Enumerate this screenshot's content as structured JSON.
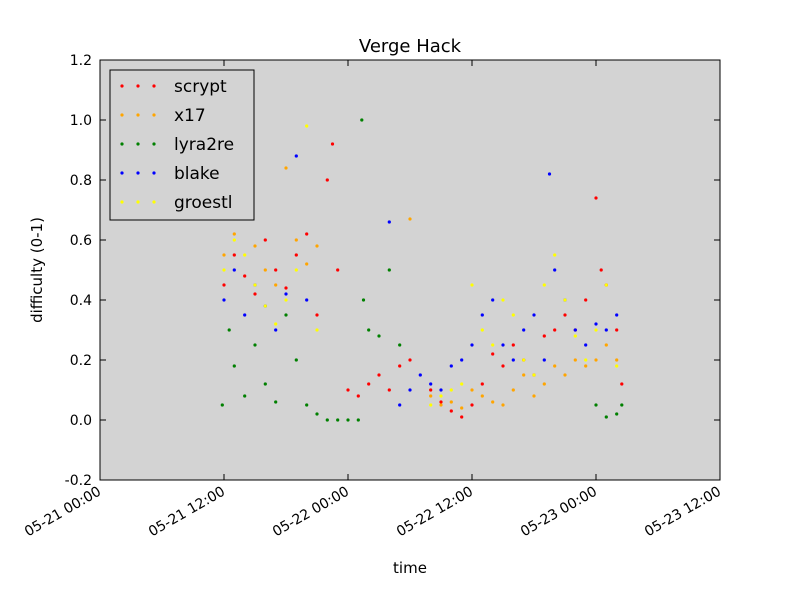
{
  "chart_data": {
    "type": "scatter",
    "title": "Verge Hack",
    "xlabel": "time",
    "ylabel": "difficulty (0-1)",
    "x_ticks": [
      "05-21 00:00",
      "05-21 12:00",
      "05-22 00:00",
      "05-22 12:00",
      "05-23 00:00",
      "05-23 12:00"
    ],
    "xlim": [
      "05-21 00:00",
      "05-23 12:00"
    ],
    "ylim": [
      -0.2,
      1.2
    ],
    "y_ticks": [
      -0.2,
      0.0,
      0.2,
      0.4,
      0.6,
      0.8,
      1.0,
      1.2
    ],
    "grid": false,
    "background": "#d3d3d3",
    "legend_position": "top-left",
    "series": [
      {
        "name": "scrypt",
        "color": "#ff0000",
        "points": [
          [
            "05-21 12:00",
            0.45
          ],
          [
            "05-21 13:00",
            0.55
          ],
          [
            "05-21 14:00",
            0.48
          ],
          [
            "05-21 15:00",
            0.42
          ],
          [
            "05-21 16:00",
            0.6
          ],
          [
            "05-21 17:00",
            0.5
          ],
          [
            "05-21 18:00",
            0.44
          ],
          [
            "05-21 19:00",
            0.55
          ],
          [
            "05-21 20:00",
            0.62
          ],
          [
            "05-21 21:00",
            0.35
          ],
          [
            "05-21 22:00",
            0.8
          ],
          [
            "05-21 22:30",
            0.92
          ],
          [
            "05-21 23:00",
            0.5
          ],
          [
            "05-22 00:00",
            0.1
          ],
          [
            "05-22 01:00",
            0.08
          ],
          [
            "05-22 02:00",
            0.12
          ],
          [
            "05-22 03:00",
            0.15
          ],
          [
            "05-22 04:00",
            0.1
          ],
          [
            "05-22 05:00",
            0.18
          ],
          [
            "05-22 06:00",
            0.2
          ],
          [
            "05-22 08:00",
            0.1
          ],
          [
            "05-22 09:00",
            0.06
          ],
          [
            "05-22 10:00",
            0.03
          ],
          [
            "05-22 11:00",
            0.01
          ],
          [
            "05-22 12:00",
            0.05
          ],
          [
            "05-22 13:00",
            0.12
          ],
          [
            "05-22 14:00",
            0.22
          ],
          [
            "05-22 15:00",
            0.18
          ],
          [
            "05-22 16:00",
            0.25
          ],
          [
            "05-22 17:00",
            0.2
          ],
          [
            "05-22 18:00",
            0.15
          ],
          [
            "05-22 19:00",
            0.28
          ],
          [
            "05-22 20:00",
            0.3
          ],
          [
            "05-22 21:00",
            0.35
          ],
          [
            "05-22 22:00",
            0.3
          ],
          [
            "05-22 23:00",
            0.4
          ],
          [
            "05-23 00:00",
            0.74
          ],
          [
            "05-23 00:30",
            0.5
          ],
          [
            "05-23 01:00",
            0.45
          ],
          [
            "05-23 02:00",
            0.3
          ],
          [
            "05-23 02:30",
            0.12
          ]
        ]
      },
      {
        "name": "x17",
        "color": "#ffa500",
        "points": [
          [
            "05-21 12:00",
            0.55
          ],
          [
            "05-21 13:00",
            0.62
          ],
          [
            "05-21 14:00",
            0.7
          ],
          [
            "05-21 15:00",
            0.58
          ],
          [
            "05-21 16:00",
            0.5
          ],
          [
            "05-21 17:00",
            0.45
          ],
          [
            "05-21 18:00",
            0.84
          ],
          [
            "05-21 19:00",
            0.6
          ],
          [
            "05-21 20:00",
            0.52
          ],
          [
            "05-21 21:00",
            0.58
          ],
          [
            "05-22 06:00",
            0.67
          ],
          [
            "05-22 08:00",
            0.08
          ],
          [
            "05-22 09:00",
            0.05
          ],
          [
            "05-22 10:00",
            0.06
          ],
          [
            "05-22 11:00",
            0.04
          ],
          [
            "05-22 12:00",
            0.1
          ],
          [
            "05-22 13:00",
            0.08
          ],
          [
            "05-22 14:00",
            0.06
          ],
          [
            "05-22 15:00",
            0.05
          ],
          [
            "05-22 16:00",
            0.1
          ],
          [
            "05-22 17:00",
            0.15
          ],
          [
            "05-22 18:00",
            0.08
          ],
          [
            "05-22 19:00",
            0.12
          ],
          [
            "05-22 20:00",
            0.18
          ],
          [
            "05-22 21:00",
            0.15
          ],
          [
            "05-22 22:00",
            0.2
          ],
          [
            "05-22 23:00",
            0.18
          ],
          [
            "05-23 00:00",
            0.2
          ],
          [
            "05-23 01:00",
            0.25
          ],
          [
            "05-23 02:00",
            0.2
          ]
        ]
      },
      {
        "name": "lyra2re",
        "color": "#008000",
        "points": [
          [
            "05-21 11:50",
            0.05
          ],
          [
            "05-21 12:30",
            0.3
          ],
          [
            "05-21 13:00",
            0.18
          ],
          [
            "05-21 14:00",
            0.08
          ],
          [
            "05-21 15:00",
            0.25
          ],
          [
            "05-21 16:00",
            0.12
          ],
          [
            "05-21 17:00",
            0.06
          ],
          [
            "05-21 18:00",
            0.35
          ],
          [
            "05-21 19:00",
            0.2
          ],
          [
            "05-21 20:00",
            0.05
          ],
          [
            "05-21 21:00",
            0.02
          ],
          [
            "05-21 22:00",
            0.0
          ],
          [
            "05-21 23:00",
            0.0
          ],
          [
            "05-22 00:00",
            0.0
          ],
          [
            "05-22 01:00",
            0.0
          ],
          [
            "05-22 01:20",
            1.0
          ],
          [
            "05-22 01:30",
            0.4
          ],
          [
            "05-22 02:00",
            0.3
          ],
          [
            "05-22 03:00",
            0.28
          ],
          [
            "05-22 04:00",
            0.5
          ],
          [
            "05-22 05:00",
            0.25
          ],
          [
            "05-23 00:00",
            0.05
          ],
          [
            "05-23 01:00",
            0.01
          ],
          [
            "05-23 02:00",
            0.02
          ],
          [
            "05-23 02:30",
            0.05
          ]
        ]
      },
      {
        "name": "blake",
        "color": "#0000ff",
        "points": [
          [
            "05-21 12:00",
            0.4
          ],
          [
            "05-21 13:00",
            0.5
          ],
          [
            "05-21 14:00",
            0.35
          ],
          [
            "05-21 15:00",
            0.45
          ],
          [
            "05-21 16:00",
            0.38
          ],
          [
            "05-21 17:00",
            0.3
          ],
          [
            "05-21 18:00",
            0.42
          ],
          [
            "05-21 19:00",
            0.88
          ],
          [
            "05-21 20:00",
            0.4
          ],
          [
            "05-22 04:00",
            0.66
          ],
          [
            "05-22 05:00",
            0.05
          ],
          [
            "05-22 06:00",
            0.1
          ],
          [
            "05-22 07:00",
            0.15
          ],
          [
            "05-22 08:00",
            0.12
          ],
          [
            "05-22 09:00",
            0.1
          ],
          [
            "05-22 10:00",
            0.18
          ],
          [
            "05-22 11:00",
            0.2
          ],
          [
            "05-22 12:00",
            0.25
          ],
          [
            "05-22 13:00",
            0.35
          ],
          [
            "05-22 14:00",
            0.4
          ],
          [
            "05-22 15:00",
            0.25
          ],
          [
            "05-22 16:00",
            0.2
          ],
          [
            "05-22 17:00",
            0.3
          ],
          [
            "05-22 18:00",
            0.35
          ],
          [
            "05-22 19:00",
            0.2
          ],
          [
            "05-22 19:30",
            0.82
          ],
          [
            "05-22 20:00",
            0.5
          ],
          [
            "05-22 21:00",
            0.4
          ],
          [
            "05-22 22:00",
            0.3
          ],
          [
            "05-22 23:00",
            0.25
          ],
          [
            "05-23 00:00",
            0.32
          ],
          [
            "05-23 01:00",
            0.3
          ],
          [
            "05-23 02:00",
            0.35
          ]
        ]
      },
      {
        "name": "groestl",
        "color": "#ffff00",
        "points": [
          [
            "05-21 12:00",
            0.5
          ],
          [
            "05-21 13:00",
            0.6
          ],
          [
            "05-21 14:00",
            0.55
          ],
          [
            "05-21 15:00",
            0.45
          ],
          [
            "05-21 16:00",
            0.38
          ],
          [
            "05-21 17:00",
            0.32
          ],
          [
            "05-21 18:00",
            0.4
          ],
          [
            "05-21 19:00",
            0.5
          ],
          [
            "05-21 20:00",
            0.98
          ],
          [
            "05-21 21:00",
            0.3
          ],
          [
            "05-22 08:00",
            0.05
          ],
          [
            "05-22 09:00",
            0.08
          ],
          [
            "05-22 10:00",
            0.1
          ],
          [
            "05-22 11:00",
            0.12
          ],
          [
            "05-22 12:00",
            0.45
          ],
          [
            "05-22 13:00",
            0.3
          ],
          [
            "05-22 14:00",
            0.25
          ],
          [
            "05-22 15:00",
            0.4
          ],
          [
            "05-22 16:00",
            0.35
          ],
          [
            "05-22 17:00",
            0.2
          ],
          [
            "05-22 18:00",
            0.15
          ],
          [
            "05-22 19:00",
            0.45
          ],
          [
            "05-22 20:00",
            0.55
          ],
          [
            "05-22 21:00",
            0.4
          ],
          [
            "05-22 22:00",
            0.28
          ],
          [
            "05-22 23:00",
            0.2
          ],
          [
            "05-23 00:00",
            0.3
          ],
          [
            "05-23 01:00",
            0.45
          ],
          [
            "05-23 02:00",
            0.18
          ]
        ]
      }
    ]
  }
}
